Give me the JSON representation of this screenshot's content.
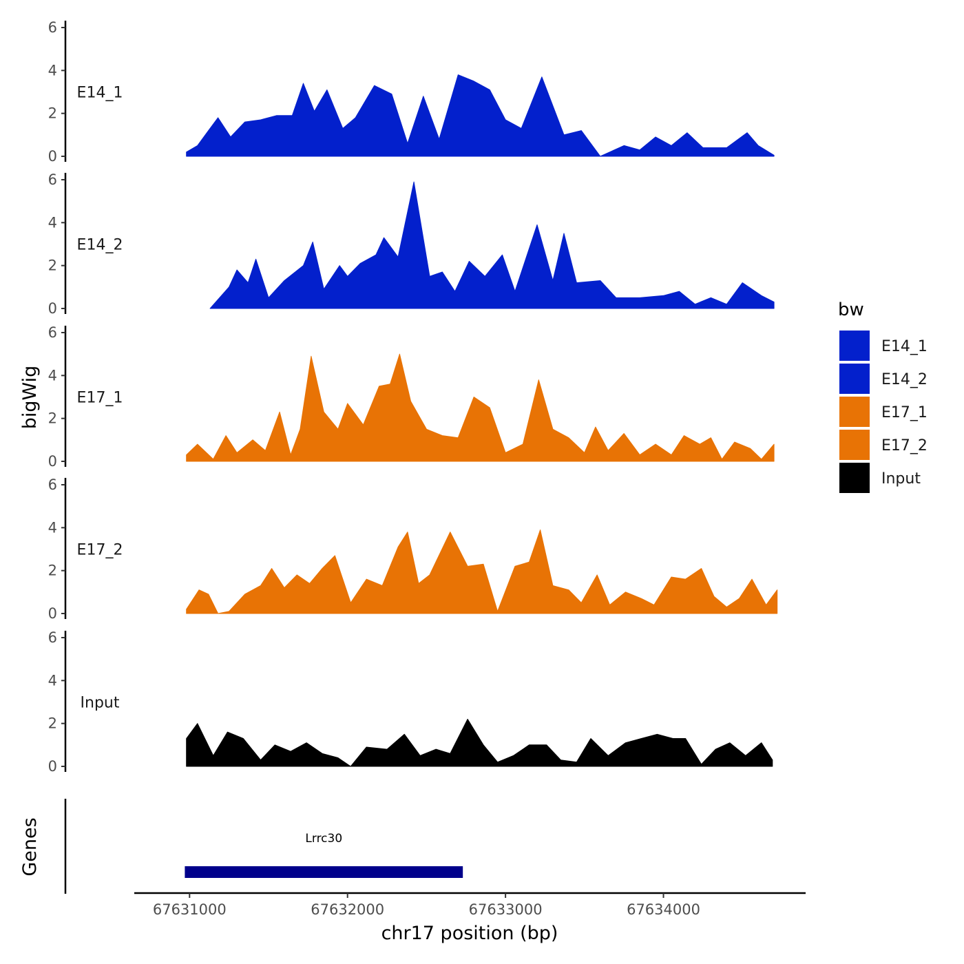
{
  "chart_data": {
    "type": "area",
    "title": "",
    "xlabel": "chr17 position (bp)",
    "ylabel": "bigWig",
    "genes_label": "Genes",
    "xlim": [
      67630650,
      67634900
    ],
    "ylim": [
      0,
      6
    ],
    "y_ticks": [
      "0",
      "2",
      "4",
      "6"
    ],
    "x_ticks": [
      {
        "value": 67631000,
        "label": "67631000"
      },
      {
        "value": 67632000,
        "label": "67632000"
      },
      {
        "value": 67633000,
        "label": "67633000"
      },
      {
        "value": 67634000,
        "label": "67634000"
      }
    ],
    "legend": {
      "title": "bw",
      "entries": [
        {
          "label": "E14_1",
          "color": "#0320CC"
        },
        {
          "label": "E14_2",
          "color": "#0320CC"
        },
        {
          "label": "E17_1",
          "color": "#E87305"
        },
        {
          "label": "E17_2",
          "color": "#E87305"
        },
        {
          "label": "Input",
          "color": "#000000"
        }
      ]
    },
    "series": [
      {
        "name": "E14_1",
        "color": "#0320CC",
        "points": [
          [
            67630980,
            0.2
          ],
          [
            67631050,
            0.5
          ],
          [
            67631120,
            1.2
          ],
          [
            67631180,
            1.8
          ],
          [
            67631260,
            0.9
          ],
          [
            67631350,
            1.6
          ],
          [
            67631450,
            1.7
          ],
          [
            67631550,
            1.9
          ],
          [
            67631650,
            1.9
          ],
          [
            67631720,
            3.4
          ],
          [
            67631790,
            2.1
          ],
          [
            67631870,
            3.1
          ],
          [
            67631970,
            1.3
          ],
          [
            67632050,
            1.8
          ],
          [
            67632170,
            3.3
          ],
          [
            67632280,
            2.9
          ],
          [
            67632380,
            0.6
          ],
          [
            67632480,
            2.8
          ],
          [
            67632580,
            0.8
          ],
          [
            67632700,
            3.8
          ],
          [
            67632800,
            3.5
          ],
          [
            67632900,
            3.1
          ],
          [
            67633000,
            1.7
          ],
          [
            67633100,
            1.3
          ],
          [
            67633230,
            3.7
          ],
          [
            67633370,
            1.0
          ],
          [
            67633480,
            1.2
          ],
          [
            67633600,
            0.0
          ],
          [
            67633750,
            0.5
          ],
          [
            67633850,
            0.3
          ],
          [
            67633950,
            0.9
          ],
          [
            67634050,
            0.5
          ],
          [
            67634150,
            1.1
          ],
          [
            67634250,
            0.4
          ],
          [
            67634400,
            0.4
          ],
          [
            67634530,
            1.1
          ],
          [
            67634600,
            0.5
          ],
          [
            67634700,
            0.05
          ]
        ]
      },
      {
        "name": "E14_2",
        "color": "#0320CC",
        "points": [
          [
            67631130,
            0.0
          ],
          [
            67631250,
            1.0
          ],
          [
            67631300,
            1.8
          ],
          [
            67631370,
            1.2
          ],
          [
            67631420,
            2.3
          ],
          [
            67631500,
            0.5
          ],
          [
            67631600,
            1.3
          ],
          [
            67631720,
            2.0
          ],
          [
            67631780,
            3.1
          ],
          [
            67631850,
            0.9
          ],
          [
            67631950,
            2.0
          ],
          [
            67632000,
            1.5
          ],
          [
            67632080,
            2.1
          ],
          [
            67632180,
            2.5
          ],
          [
            67632230,
            3.3
          ],
          [
            67632320,
            2.4
          ],
          [
            67632420,
            5.9
          ],
          [
            67632520,
            1.5
          ],
          [
            67632600,
            1.7
          ],
          [
            67632680,
            0.8
          ],
          [
            67632770,
            2.2
          ],
          [
            67632870,
            1.5
          ],
          [
            67632980,
            2.5
          ],
          [
            67633060,
            0.8
          ],
          [
            67633200,
            3.9
          ],
          [
            67633300,
            1.3
          ],
          [
            67633370,
            3.5
          ],
          [
            67633450,
            1.2
          ],
          [
            67633600,
            1.3
          ],
          [
            67633700,
            0.5
          ],
          [
            67633850,
            0.5
          ],
          [
            67634000,
            0.6
          ],
          [
            67634100,
            0.8
          ],
          [
            67634200,
            0.2
          ],
          [
            67634300,
            0.5
          ],
          [
            67634400,
            0.2
          ],
          [
            67634500,
            1.2
          ],
          [
            67634620,
            0.6
          ],
          [
            67634700,
            0.3
          ]
        ]
      },
      {
        "name": "E17_1",
        "color": "#E87305",
        "points": [
          [
            67630980,
            0.3
          ],
          [
            67631050,
            0.8
          ],
          [
            67631150,
            0.1
          ],
          [
            67631230,
            1.2
          ],
          [
            67631300,
            0.4
          ],
          [
            67631400,
            1.0
          ],
          [
            67631480,
            0.5
          ],
          [
            67631570,
            2.3
          ],
          [
            67631640,
            0.3
          ],
          [
            67631700,
            1.5
          ],
          [
            67631770,
            4.9
          ],
          [
            67631850,
            2.3
          ],
          [
            67631940,
            1.5
          ],
          [
            67632000,
            2.7
          ],
          [
            67632100,
            1.7
          ],
          [
            67632200,
            3.5
          ],
          [
            67632270,
            3.6
          ],
          [
            67632330,
            5.0
          ],
          [
            67632400,
            2.8
          ],
          [
            67632500,
            1.5
          ],
          [
            67632600,
            1.2
          ],
          [
            67632700,
            1.1
          ],
          [
            67632800,
            3.0
          ],
          [
            67632900,
            2.5
          ],
          [
            67633000,
            0.4
          ],
          [
            67633110,
            0.8
          ],
          [
            67633210,
            3.8
          ],
          [
            67633300,
            1.5
          ],
          [
            67633400,
            1.1
          ],
          [
            67633500,
            0.4
          ],
          [
            67633570,
            1.6
          ],
          [
            67633650,
            0.5
          ],
          [
            67633750,
            1.3
          ],
          [
            67633850,
            0.3
          ],
          [
            67633950,
            0.8
          ],
          [
            67634050,
            0.3
          ],
          [
            67634130,
            1.2
          ],
          [
            67634230,
            0.8
          ],
          [
            67634300,
            1.1
          ],
          [
            67634370,
            0.1
          ],
          [
            67634450,
            0.9
          ],
          [
            67634550,
            0.6
          ],
          [
            67634620,
            0.1
          ],
          [
            67634700,
            0.8
          ]
        ]
      },
      {
        "name": "E17_2",
        "color": "#E87305",
        "points": [
          [
            67630980,
            0.2
          ],
          [
            67631060,
            1.1
          ],
          [
            67631120,
            0.9
          ],
          [
            67631180,
            0.0
          ],
          [
            67631250,
            0.1
          ],
          [
            67631350,
            0.9
          ],
          [
            67631450,
            1.3
          ],
          [
            67631520,
            2.1
          ],
          [
            67631600,
            1.2
          ],
          [
            67631680,
            1.8
          ],
          [
            67631760,
            1.4
          ],
          [
            67631840,
            2.1
          ],
          [
            67631920,
            2.7
          ],
          [
            67632020,
            0.5
          ],
          [
            67632120,
            1.6
          ],
          [
            67632220,
            1.3
          ],
          [
            67632320,
            3.1
          ],
          [
            67632380,
            3.8
          ],
          [
            67632450,
            1.4
          ],
          [
            67632520,
            1.8
          ],
          [
            67632650,
            3.8
          ],
          [
            67632760,
            2.2
          ],
          [
            67632860,
            2.3
          ],
          [
            67632950,
            0.1
          ],
          [
            67633060,
            2.2
          ],
          [
            67633150,
            2.4
          ],
          [
            67633220,
            3.9
          ],
          [
            67633300,
            1.3
          ],
          [
            67633400,
            1.1
          ],
          [
            67633480,
            0.5
          ],
          [
            67633580,
            1.8
          ],
          [
            67633660,
            0.4
          ],
          [
            67633760,
            1.0
          ],
          [
            67633860,
            0.7
          ],
          [
            67633940,
            0.4
          ],
          [
            67634050,
            1.7
          ],
          [
            67634140,
            1.6
          ],
          [
            67634240,
            2.1
          ],
          [
            67634320,
            0.8
          ],
          [
            67634400,
            0.3
          ],
          [
            67634480,
            0.7
          ],
          [
            67634560,
            1.6
          ],
          [
            67634650,
            0.4
          ],
          [
            67634720,
            1.1
          ]
        ]
      },
      {
        "name": "Input",
        "color": "#000000",
        "points": [
          [
            67630980,
            1.3
          ],
          [
            67631050,
            2.0
          ],
          [
            67631150,
            0.5
          ],
          [
            67631240,
            1.6
          ],
          [
            67631340,
            1.3
          ],
          [
            67631450,
            0.3
          ],
          [
            67631540,
            1.0
          ],
          [
            67631640,
            0.7
          ],
          [
            67631740,
            1.1
          ],
          [
            67631840,
            0.6
          ],
          [
            67631940,
            0.4
          ],
          [
            67632020,
            0.0
          ],
          [
            67632120,
            0.9
          ],
          [
            67632250,
            0.8
          ],
          [
            67632360,
            1.5
          ],
          [
            67632460,
            0.5
          ],
          [
            67632560,
            0.8
          ],
          [
            67632650,
            0.6
          ],
          [
            67632760,
            2.2
          ],
          [
            67632860,
            1.0
          ],
          [
            67632950,
            0.2
          ],
          [
            67633050,
            0.5
          ],
          [
            67633150,
            1.0
          ],
          [
            67633260,
            1.0
          ],
          [
            67633350,
            0.3
          ],
          [
            67633450,
            0.2
          ],
          [
            67633540,
            1.3
          ],
          [
            67633650,
            0.5
          ],
          [
            67633760,
            1.1
          ],
          [
            67633860,
            1.3
          ],
          [
            67633960,
            1.5
          ],
          [
            67634060,
            1.3
          ],
          [
            67634140,
            1.3
          ],
          [
            67634240,
            0.1
          ],
          [
            67634330,
            0.8
          ],
          [
            67634420,
            1.1
          ],
          [
            67634520,
            0.5
          ],
          [
            67634620,
            1.1
          ],
          [
            67634690,
            0.3
          ]
        ]
      }
    ],
    "genes": [
      {
        "name": "Lrrc30",
        "start": 67630970,
        "end": 67632730,
        "color": "#00008B"
      }
    ]
  }
}
